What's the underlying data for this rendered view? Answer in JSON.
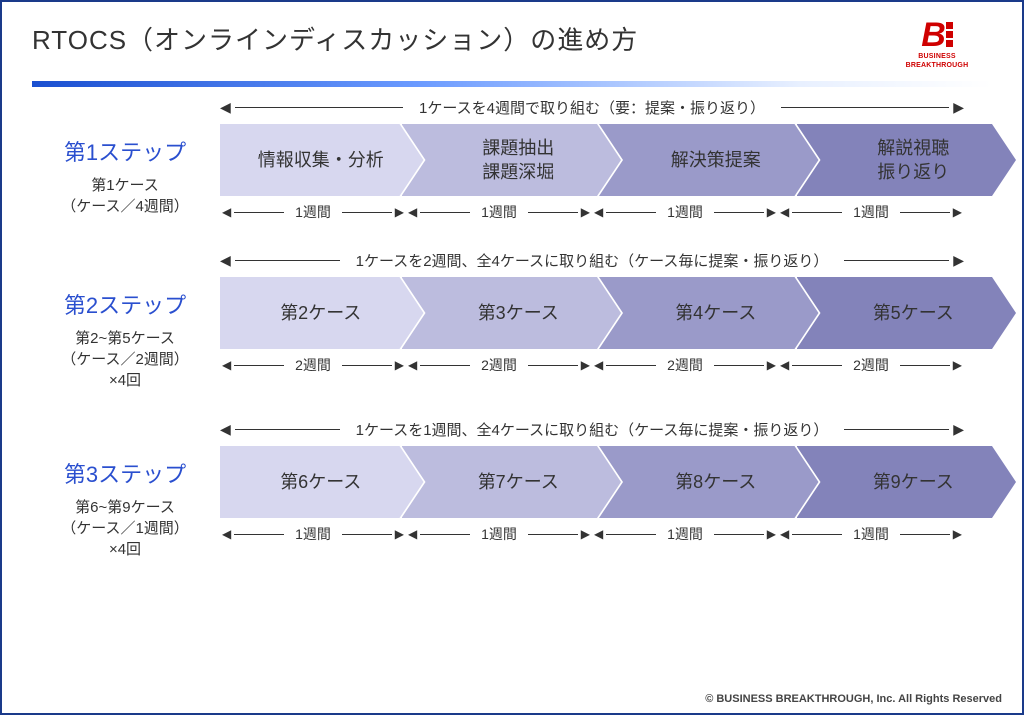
{
  "title": "RTOCS（オンラインディスカッション）の進め方",
  "logo": {
    "mark": "B",
    "sub1": "BUSINESS",
    "sub2": "BREAKTHROUGH"
  },
  "chevron_colors": [
    "#d7d7ef",
    "#bcbcde",
    "#9a9ac9",
    "#8383ba"
  ],
  "text_color": "#333333",
  "step_title_color": "#2a4fcf",
  "steps": [
    {
      "title": "第1ステップ",
      "sub1": "第1ケース",
      "sub2": "（ケース／4週間）",
      "sub3": "",
      "overline": "1ケースを4週間で取り組む（要：提案・振り返り）",
      "items": [
        "情報収集・分析",
        "課題抽出\n課題深堀",
        "解決策提案",
        "解説視聴\n振り返り"
      ],
      "durations": [
        "1週間",
        "1週間",
        "1週間",
        "1週間"
      ]
    },
    {
      "title": "第2ステップ",
      "sub1": "第2~第5ケース",
      "sub2": "（ケース／2週間）",
      "sub3": "×4回",
      "overline": "1ケースを2週間、全4ケースに取り組む（ケース毎に提案・振り返り）",
      "items": [
        "第2ケース",
        "第3ケース",
        "第4ケース",
        "第5ケース"
      ],
      "durations": [
        "2週間",
        "2週間",
        "2週間",
        "2週間"
      ]
    },
    {
      "title": "第3ステップ",
      "sub1": "第6~第9ケース",
      "sub2": "（ケース／1週間）",
      "sub3": "×4回",
      "overline": "1ケースを1週間、全4ケースに取り組む（ケース毎に提案・振り返り）",
      "items": [
        "第6ケース",
        "第7ケース",
        "第8ケース",
        "第9ケース"
      ],
      "durations": [
        "1週間",
        "1週間",
        "1週間",
        "1週間"
      ]
    }
  ],
  "footer": "© BUSINESS BREAKTHROUGH, Inc. All Rights Reserved"
}
